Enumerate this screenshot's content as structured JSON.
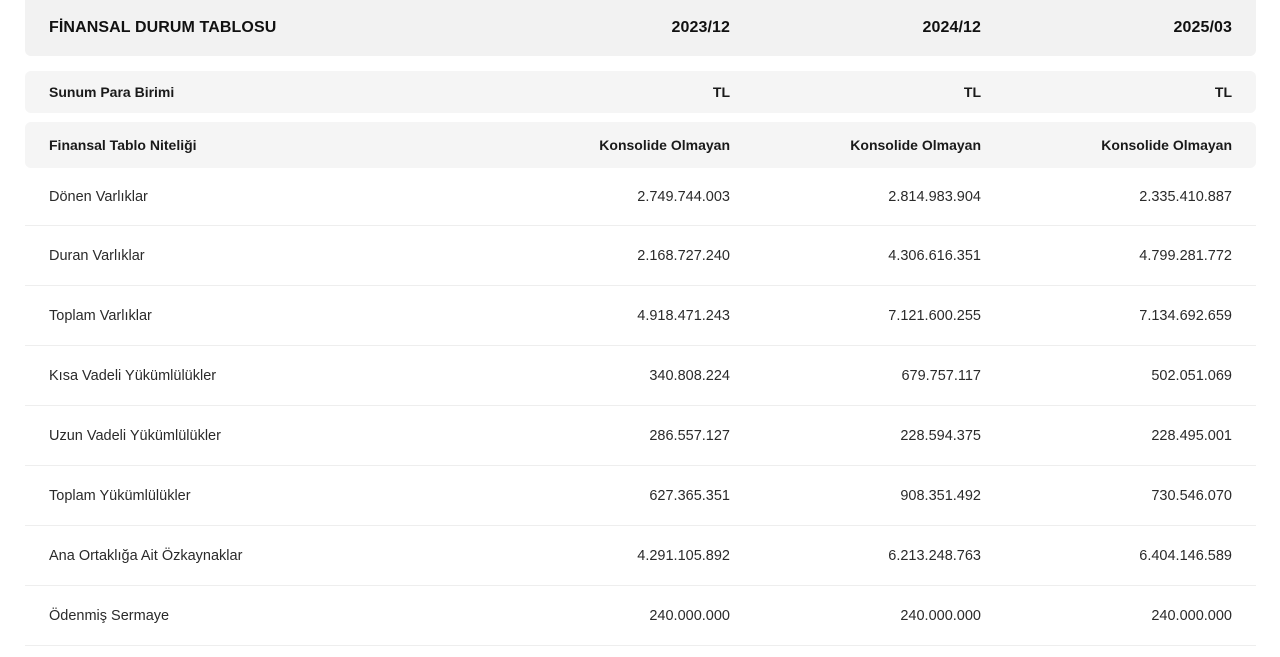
{
  "table": {
    "title": "FİNANSAL DURUM TABLOSU",
    "periods": [
      "2023/12",
      "2024/12",
      "2025/03"
    ],
    "currency_row": {
      "label": "Sunum Para Birimi",
      "values": [
        "TL",
        "TL",
        "TL"
      ]
    },
    "nature_row": {
      "label": "Finansal Tablo Niteliği",
      "values": [
        "Konsolide Olmayan",
        "Konsolide Olmayan",
        "Konsolide Olmayan"
      ]
    },
    "rows": [
      {
        "label": "Dönen Varlıklar",
        "values": [
          "2.749.744.003",
          "2.814.983.904",
          "2.335.410.887"
        ]
      },
      {
        "label": "Duran Varlıklar",
        "values": [
          "2.168.727.240",
          "4.306.616.351",
          "4.799.281.772"
        ]
      },
      {
        "label": "Toplam Varlıklar",
        "values": [
          "4.918.471.243",
          "7.121.600.255",
          "7.134.692.659"
        ]
      },
      {
        "label": "Kısa Vadeli Yükümlülükler",
        "values": [
          "340.808.224",
          "679.757.117",
          "502.051.069"
        ]
      },
      {
        "label": "Uzun Vadeli Yükümlülükler",
        "values": [
          "286.557.127",
          "228.594.375",
          "228.495.001"
        ]
      },
      {
        "label": "Toplam Yükümlülükler",
        "values": [
          "627.365.351",
          "908.351.492",
          "730.546.070"
        ]
      },
      {
        "label": "Ana Ortaklığa Ait Özkaynaklar",
        "values": [
          "4.291.105.892",
          "6.213.248.763",
          "6.404.146.589"
        ]
      },
      {
        "label": "Ödenmiş Sermaye",
        "values": [
          "240.000.000",
          "240.000.000",
          "240.000.000"
        ]
      }
    ]
  }
}
